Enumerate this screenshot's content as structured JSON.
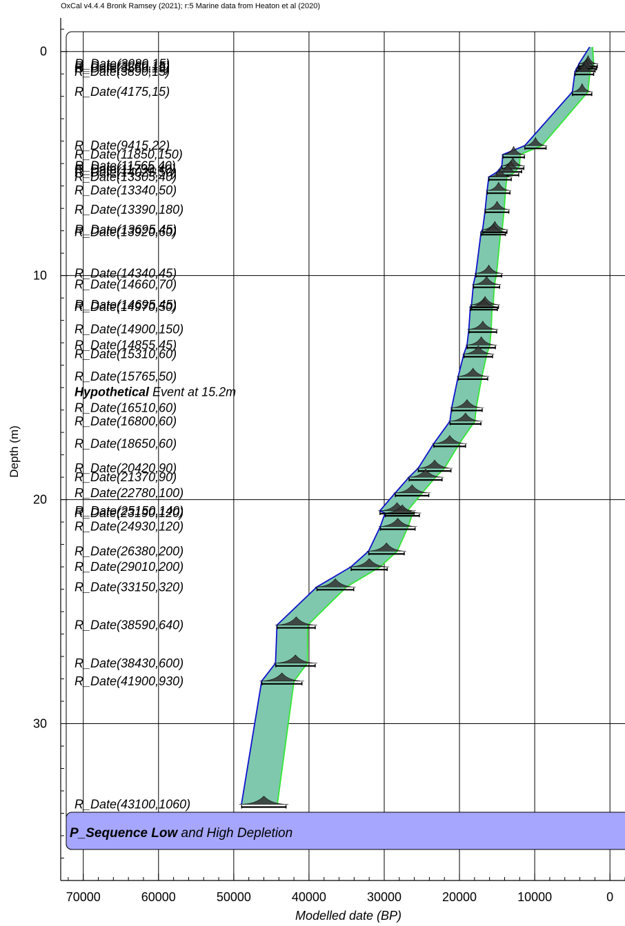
{
  "chart_data": {
    "type": "scatter",
    "header": "OxCal v4.4.4 Bronk Ramsey (2021); r:5 Marine data from Heaton et al (2020)",
    "xlabel": "Modelled date (BP)",
    "ylabel": "Depth (m)",
    "xlim": [
      73000,
      -2000
    ],
    "x_ticks": [
      "70000",
      "60000",
      "50000",
      "40000",
      "30000",
      "20000",
      "10000",
      "0"
    ],
    "x_tick_values": [
      70000,
      60000,
      50000,
      40000,
      30000,
      20000,
      10000,
      0
    ],
    "ylim": [
      -1.5,
      37
    ],
    "y_ticks": [
      "0",
      "10",
      "20",
      "30"
    ],
    "y_tick_values": [
      0,
      10,
      20,
      30
    ],
    "grid": true,
    "sequence": {
      "label_bold": "P_Sequence Low",
      "label_rest": " and High Depletion",
      "color": "#a6a6ff"
    },
    "envelope_fill": "#7fc8ad",
    "envelope_edge_old": "#1010cc",
    "envelope_edge_young": "#33e633",
    "samples": [
      {
        "label": "R_Date(3080,15)",
        "depth": 0.55,
        "date": 2900
      },
      {
        "label": "R_Date(3280,15)",
        "depth": 0.65,
        "date": 3000
      },
      {
        "label": "R_Date(3550,15)",
        "depth": 0.75,
        "date": 3200
      },
      {
        "label": "R_Date(3890,15)",
        "depth": 0.9,
        "date": 3400
      },
      {
        "label": "R_Date(4175,15)",
        "depth": 1.8,
        "date": 3700
      },
      {
        "label": "R_Date(9415,22)",
        "depth": 4.2,
        "date": 9900
      },
      {
        "label": "R_Date(11850,150)",
        "depth": 4.6,
        "date": 12800
      },
      {
        "label": "R_Date(11565,40)",
        "depth": 5.1,
        "date": 12900
      },
      {
        "label": "R_Date(11790,40)",
        "depth": 5.25,
        "date": 13200
      },
      {
        "label": "R_Date(14025,50)",
        "depth": 5.4,
        "date": 13600
      },
      {
        "label": "R_Date(13305,40)",
        "depth": 5.6,
        "date": 14600
      },
      {
        "label": "R_Date(13340,50)",
        "depth": 6.2,
        "date": 14800
      },
      {
        "label": "R_Date(13390,180)",
        "depth": 7.05,
        "date": 15000
      },
      {
        "label": "R_Date(13695,45)",
        "depth": 7.95,
        "date": 15300
      },
      {
        "label": "R_Date(13920,60)",
        "depth": 8.05,
        "date": 15500
      },
      {
        "label": "R_Date(14340,45)",
        "depth": 9.9,
        "date": 16100
      },
      {
        "label": "R_Date(14660,70)",
        "depth": 10.4,
        "date": 16400
      },
      {
        "label": "R_Date(14695,45)",
        "depth": 11.3,
        "date": 16600
      },
      {
        "label": "R_Date(14970,50)",
        "depth": 11.4,
        "date": 16750
      },
      {
        "label": "R_Date(14900,150)",
        "depth": 12.4,
        "date": 16900
      },
      {
        "label": "R_Date(14855,45)",
        "depth": 13.1,
        "date": 17100
      },
      {
        "label": "R_Date(15310,60)",
        "depth": 13.5,
        "date": 17500
      },
      {
        "label": "R_Date(15765,50)",
        "depth": 14.5,
        "date": 18200
      },
      {
        "label": "R_Date(16510,60)",
        "depth": 15.9,
        "date": 19000
      },
      {
        "label": "R_Date(16800,60)",
        "depth": 16.5,
        "date": 19200
      },
      {
        "label": "R_Date(18650,60)",
        "depth": 17.5,
        "date": 21300
      },
      {
        "label": "R_Date(20420,90)",
        "depth": 18.6,
        "date": 23300
      },
      {
        "label": "R_Date(21370,90)",
        "depth": 19.0,
        "date": 24500
      },
      {
        "label": "R_Date(22780,100)",
        "depth": 19.7,
        "date": 26300
      },
      {
        "label": "R_Date(25150,140)",
        "depth": 20.5,
        "date": 28300
      },
      {
        "label": "R_Date(23190,120)",
        "depth": 20.6,
        "date": 27600
      },
      {
        "label": "R_Date(24930,120)",
        "depth": 21.2,
        "date": 28200
      },
      {
        "label": "R_Date(26380,200)",
        "depth": 22.3,
        "date": 29700
      },
      {
        "label": "R_Date(29010,200)",
        "depth": 23.0,
        "date": 32000
      },
      {
        "label": "R_Date(33150,320)",
        "depth": 23.9,
        "date": 36500
      },
      {
        "label": "R_Date(38590,640)",
        "depth": 25.6,
        "date": 41700
      },
      {
        "label": "R_Date(38430,600)",
        "depth": 27.3,
        "date": 41800
      },
      {
        "label": "R_Date(41900,930)",
        "depth": 28.1,
        "date": 43600
      },
      {
        "label": "R_Date(43100,1060)",
        "depth": 33.6,
        "date": 46000
      }
    ],
    "event": {
      "label_bold": "Hypothetical",
      "label_rest": " Event at 15.2m",
      "depth": 15.2
    }
  }
}
